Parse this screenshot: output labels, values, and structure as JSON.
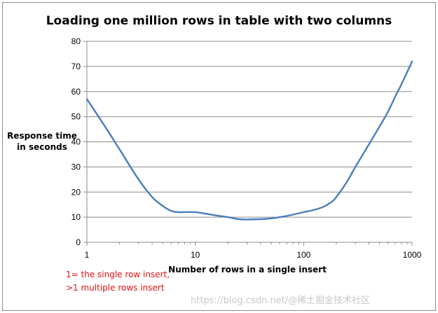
{
  "chart_data": {
    "type": "line",
    "title": "Loading one million rows in table with two columns",
    "xlabel": "Number of rows in a single insert",
    "ylabel_lines": [
      "Response time",
      "in seconds"
    ],
    "x_scale": "log",
    "xlim": [
      1,
      1000
    ],
    "ylim": [
      0,
      80
    ],
    "x_ticks": [
      1,
      10,
      100,
      1000
    ],
    "y_ticks": [
      0,
      10,
      20,
      30,
      40,
      50,
      60,
      70,
      80
    ],
    "grid": "horizontal",
    "line_color": "#4a7ebb",
    "series": [
      {
        "x": [
          1,
          1.5,
          2,
          3,
          4,
          5,
          6,
          7,
          8,
          10,
          12,
          15,
          20,
          25,
          30,
          40,
          50,
          60,
          70,
          80,
          100,
          120,
          150,
          180,
          200,
          250,
          300,
          400,
          500,
          600,
          700,
          800,
          1000
        ],
        "values": [
          57,
          45.5,
          37,
          25,
          18,
          14.5,
          12.5,
          12,
          12,
          12,
          11.5,
          10.8,
          10,
          9.2,
          9.1,
          9.2,
          9.5,
          10,
          10.5,
          11,
          12,
          12.7,
          14,
          16,
          18,
          24,
          30,
          39,
          46,
          52,
          58,
          63,
          72
        ]
      }
    ]
  },
  "annotation_lines": [
    "1= the single row  insert,",
    ">1 multiple rows insert"
  ],
  "watermark": "https://blog.csdn.net/@稀土掘金技术社区"
}
